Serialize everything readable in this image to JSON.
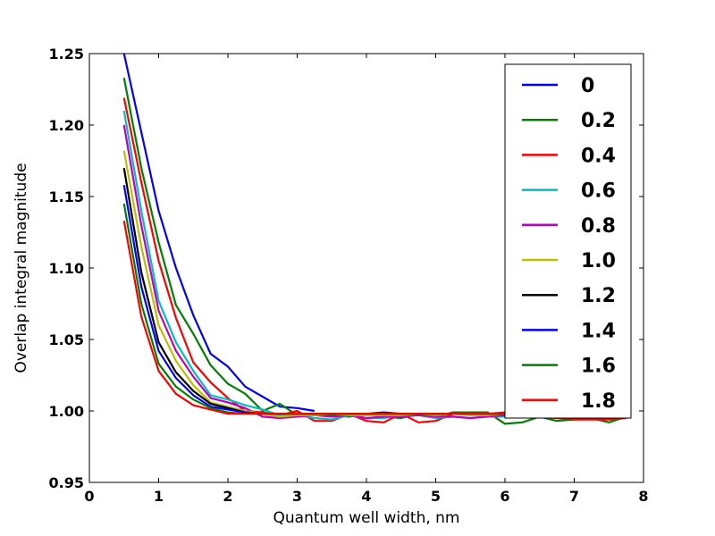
{
  "chart_data": {
    "type": "line",
    "title": "",
    "xlabel": "Quantum well width, nm",
    "ylabel": "Overlap integral magnitude",
    "xlim": [
      0,
      8
    ],
    "ylim": [
      0.95,
      1.25
    ],
    "xticks": [
      0,
      1,
      2,
      3,
      4,
      5,
      6,
      7,
      8
    ],
    "xtick_labels": [
      "0",
      "1",
      "2",
      "3",
      "4",
      "5",
      "6",
      "7",
      "8"
    ],
    "yticks": [
      0.95,
      1.0,
      1.05,
      1.1,
      1.15,
      1.2,
      1.25
    ],
    "ytick_labels": [
      "0.95",
      "1.00",
      "1.05",
      "1.10",
      "1.15",
      "1.20",
      "1.25"
    ],
    "grid": false,
    "legend_position": "top-right",
    "x": [
      0.5,
      0.75,
      1.0,
      1.25,
      1.5,
      1.75,
      2.0,
      2.25,
      2.5,
      2.75,
      3.0,
      3.25,
      3.5,
      3.75,
      4.0,
      4.25,
      4.5,
      4.75,
      5.0,
      5.25,
      5.5,
      5.75,
      6.0,
      6.25,
      6.5,
      6.75,
      7.0,
      7.25,
      7.5,
      7.75
    ],
    "series": [
      {
        "name": "0",
        "color": "#0000ff",
        "values": [
          1.25,
          1.195,
          1.14,
          1.1,
          1.067,
          1.04,
          1.031,
          1.017,
          1.01,
          1.003,
          1.002,
          1.0,
          null,
          null,
          null,
          null,
          null,
          null,
          null,
          null,
          null,
          null,
          null,
          null,
          null,
          null,
          null,
          null,
          null,
          null
        ]
      },
      {
        "name": "0.2",
        "color": "#008000",
        "values": [
          1.233,
          1.17,
          1.118,
          1.074,
          1.054,
          1.032,
          1.019,
          1.012,
          1.0,
          1.005,
          0.997,
          0.997,
          0.997,
          0.996,
          0.998,
          0.996,
          0.995,
          0.998,
          0.996,
          0.999,
          0.999,
          0.999,
          0.991,
          0.992,
          0.996,
          0.993,
          0.994,
          0.995,
          0.992,
          0.996
        ]
      },
      {
        "name": "0.4",
        "color": "#ff0000",
        "values": [
          1.219,
          1.16,
          1.105,
          1.065,
          1.034,
          1.02,
          1.009,
          1.0,
          0.999,
          0.997,
          1.0,
          0.993,
          0.993,
          0.998,
          0.993,
          0.992,
          0.998,
          0.992,
          0.993,
          0.998,
          0.998,
          0.998,
          0.999,
          0.999,
          0.996,
          0.995,
          0.994,
          0.994,
          0.994,
          0.995
        ]
      },
      {
        "name": "0.6",
        "color": "#00bfbf",
        "values": [
          1.21,
          1.14,
          1.077,
          1.048,
          1.028,
          1.011,
          1.008,
          1.004,
          1.001,
          0.997,
          0.997,
          0.995,
          0.994,
          0.997,
          0.995,
          0.995,
          0.997,
          0.997,
          0.995,
          0.996,
          0.995,
          0.996,
          0.996,
          0.997,
          0.996,
          0.996,
          0.997,
          0.997,
          0.996,
          0.996
        ]
      },
      {
        "name": "0.8",
        "color": "#bf00bf",
        "values": [
          1.2,
          1.13,
          1.07,
          1.042,
          1.024,
          1.009,
          1.006,
          1.002,
          0.996,
          0.995,
          0.996,
          0.997,
          0.996,
          0.997,
          0.995,
          0.996,
          0.996,
          0.997,
          0.996,
          0.996,
          0.995,
          0.996,
          0.997,
          0.996,
          0.996,
          0.996,
          0.996,
          0.996,
          0.996,
          0.996
        ]
      },
      {
        "name": "1.0",
        "color": "#bfbf00",
        "values": [
          1.182,
          1.115,
          1.06,
          1.035,
          1.018,
          1.006,
          1.003,
          1.0,
          0.998,
          0.996,
          0.997,
          0.997,
          0.998,
          0.997,
          0.997,
          0.997,
          0.997,
          0.998,
          0.997,
          0.998,
          0.997,
          0.997,
          0.998,
          0.997,
          0.998,
          0.997,
          0.997,
          0.997,
          0.997,
          0.997
        ]
      },
      {
        "name": "1.2",
        "color": "#000000",
        "values": [
          1.17,
          1.097,
          1.048,
          1.027,
          1.014,
          1.005,
          1.002,
          0.999,
          0.998,
          0.998,
          0.998,
          0.998,
          0.998,
          0.998,
          0.998,
          0.998,
          0.998,
          0.998,
          0.998,
          0.998,
          0.998,
          0.998,
          0.998,
          0.998,
          0.998,
          0.998,
          0.998,
          0.998,
          0.998,
          0.998
        ]
      },
      {
        "name": "1.4",
        "color": "#0000ff",
        "values": [
          1.158,
          1.087,
          1.042,
          1.023,
          1.011,
          1.003,
          1.001,
          0.999,
          0.998,
          0.998,
          0.998,
          0.998,
          0.998,
          0.998,
          0.998,
          0.999,
          0.998,
          0.998,
          0.998,
          0.998,
          0.998,
          0.998,
          0.998,
          0.998,
          0.998,
          0.998,
          0.998,
          0.998,
          0.998,
          0.998
        ]
      },
      {
        "name": "1.6",
        "color": "#008000",
        "values": [
          1.145,
          1.075,
          1.033,
          1.017,
          1.008,
          1.002,
          0.999,
          0.998,
          0.998,
          0.998,
          0.998,
          0.998,
          0.998,
          0.998,
          0.998,
          0.998,
          0.998,
          0.998,
          0.998,
          0.998,
          0.998,
          0.998,
          0.998,
          0.998,
          0.998,
          0.998,
          0.998,
          0.998,
          0.998,
          0.998
        ]
      },
      {
        "name": "1.8",
        "color": "#ff0000",
        "values": [
          1.133,
          1.066,
          1.028,
          1.012,
          1.004,
          1.001,
          0.998,
          0.998,
          0.998,
          0.998,
          0.998,
          0.998,
          0.998,
          0.998,
          0.998,
          0.998,
          0.998,
          0.998,
          0.998,
          0.998,
          0.998,
          0.998,
          0.998,
          0.998,
          0.998,
          0.998,
          0.998,
          0.998,
          0.998,
          0.998
        ]
      }
    ]
  }
}
